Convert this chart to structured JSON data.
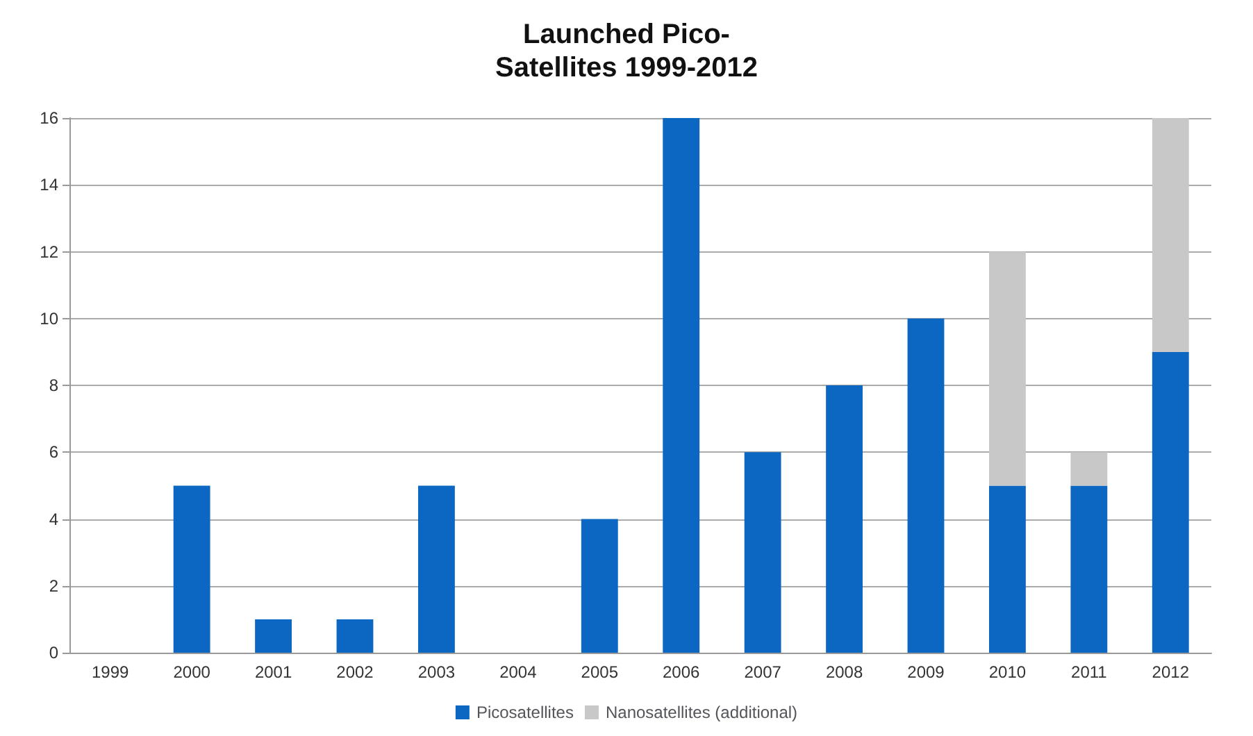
{
  "chart_data": {
    "type": "bar",
    "title": "Launched Pico-\nSatellites 1999-2012",
    "stacked": true,
    "grid": "y",
    "legend": "bottom",
    "categories": [
      "1999",
      "2000",
      "2001",
      "2002",
      "2003",
      "2004",
      "2005",
      "2006",
      "2007",
      "2008",
      "2009",
      "2010",
      "2011",
      "2012"
    ],
    "series": [
      {
        "name": "Picosatellites",
        "color": "#0b67c2",
        "values": [
          0,
          5,
          1,
          1,
          5,
          0,
          4,
          16,
          6,
          8,
          10,
          5,
          5,
          9
        ]
      },
      {
        "name": "Nanosatellites (additional)",
        "color": "#c8c8c8",
        "values": [
          0,
          0,
          0,
          0,
          0,
          0,
          0,
          0,
          0,
          0,
          0,
          7,
          1,
          7
        ]
      }
    ],
    "ylim": [
      0,
      16
    ],
    "yticks": [
      0,
      2,
      4,
      6,
      8,
      10,
      12,
      14,
      16
    ]
  }
}
